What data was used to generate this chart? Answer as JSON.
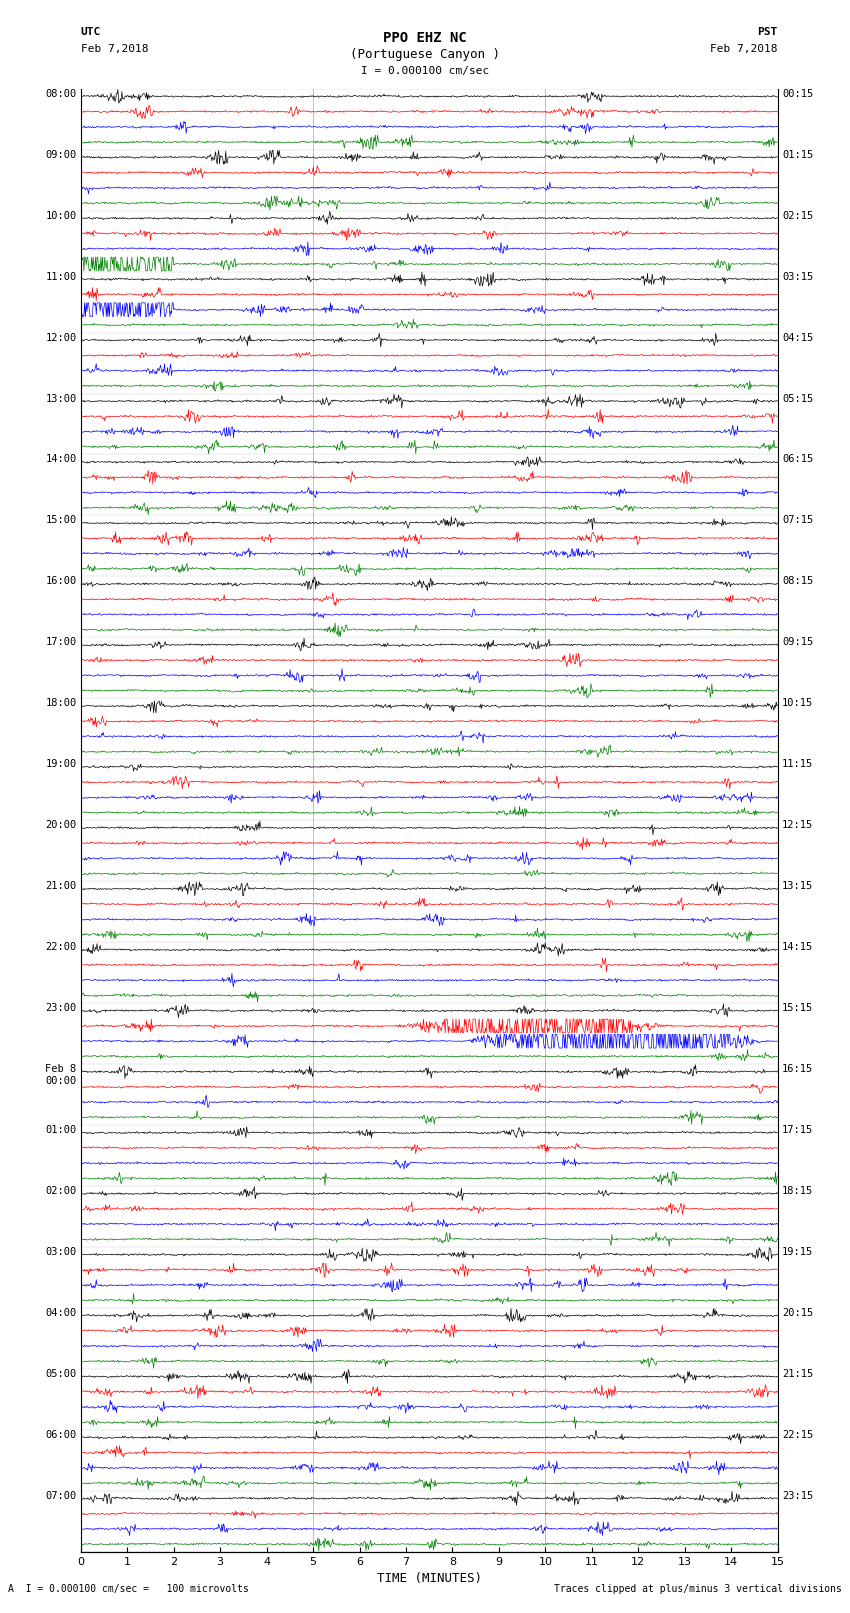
{
  "title_main": "PPO EHZ NC",
  "title_sub": "(Portuguese Canyon )",
  "scale_label": "I = 0.000100 cm/sec",
  "utc_label": "UTC",
  "pst_label": "PST",
  "date_left": "Feb 7,2018",
  "date_right": "Feb 7,2018",
  "xlabel": "TIME (MINUTES)",
  "footer_left": "A  I = 0.000100 cm/sec =   100 microvolts",
  "footer_right": "Traces clipped at plus/minus 3 vertical divisions",
  "colors": [
    "black",
    "red",
    "blue",
    "green"
  ],
  "bg_color": "white",
  "xmin": 0,
  "xmax": 15,
  "xticks": [
    0,
    1,
    2,
    3,
    4,
    5,
    6,
    7,
    8,
    9,
    10,
    11,
    12,
    13,
    14,
    15
  ],
  "fig_width": 8.5,
  "fig_height": 16.13,
  "dpi": 100,
  "left_labels_utc": [
    "08:00",
    "09:00",
    "10:00",
    "11:00",
    "12:00",
    "13:00",
    "14:00",
    "15:00",
    "16:00",
    "17:00",
    "18:00",
    "19:00",
    "20:00",
    "21:00",
    "22:00",
    "23:00",
    "Feb 8\n00:00",
    "01:00",
    "02:00",
    "03:00",
    "04:00",
    "05:00",
    "06:00",
    "07:00"
  ],
  "right_labels_pst": [
    "00:15",
    "01:15",
    "02:15",
    "03:15",
    "04:15",
    "05:15",
    "06:15",
    "07:15",
    "08:15",
    "09:15",
    "10:15",
    "11:15",
    "12:15",
    "13:15",
    "14:15",
    "15:15",
    "16:15",
    "17:15",
    "18:15",
    "19:15",
    "20:15",
    "21:15",
    "22:15",
    "23:15"
  ],
  "noise_seed": 12345,
  "noise_base": 0.055,
  "spike_amplitude": 0.18,
  "clip_val": 0.45,
  "vgrid_minutes": [
    5,
    10
  ],
  "trace_linewidth": 0.5
}
